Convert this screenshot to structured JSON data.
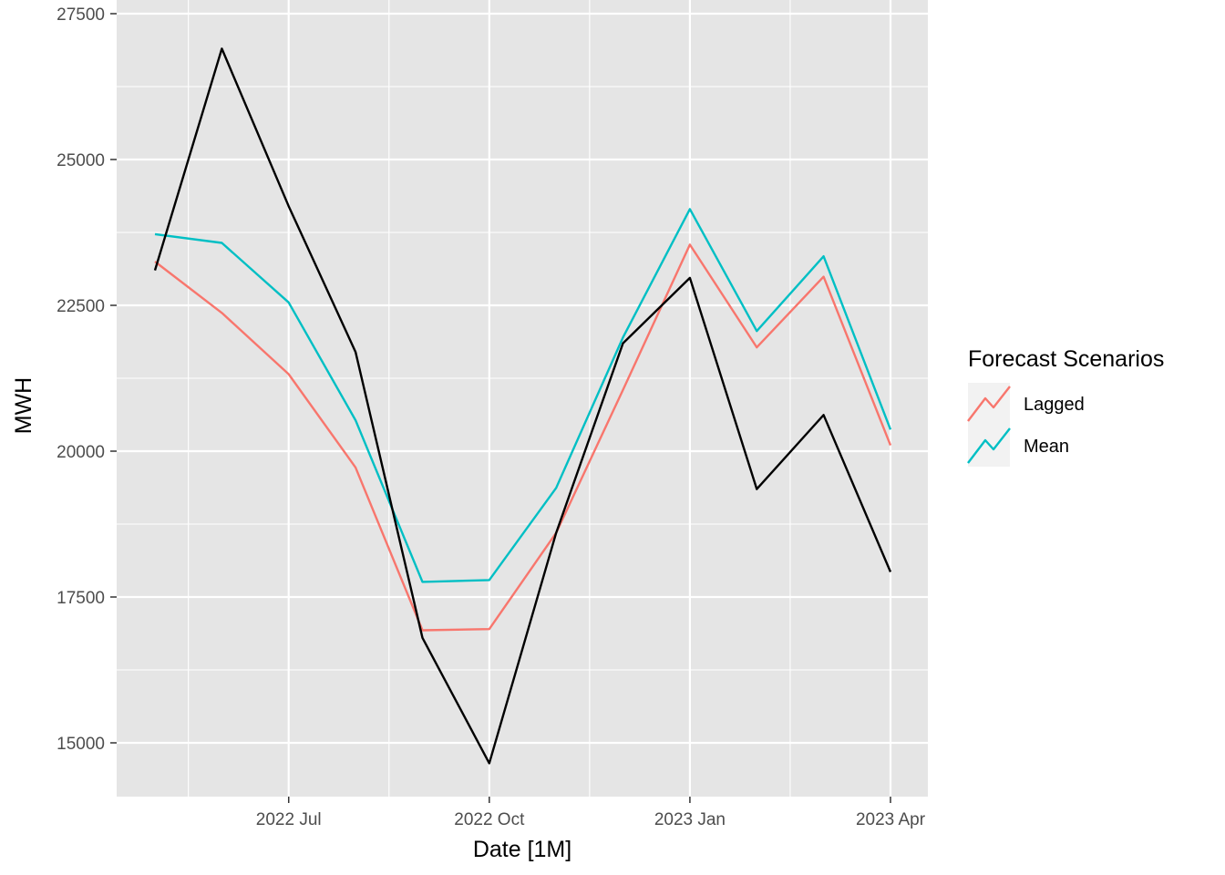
{
  "chart_data": {
    "type": "line",
    "xlabel": "Date [1M]",
    "ylabel": "MWH",
    "x": [
      "2022-05",
      "2022-06",
      "2022-07",
      "2022-08",
      "2022-09",
      "2022-10",
      "2022-11",
      "2022-12",
      "2023-01",
      "2023-02",
      "2023-03",
      "2023-04"
    ],
    "x_tick_labels": [
      "2022 Jul",
      "2022 Oct",
      "2023 Jan",
      "2023 Apr"
    ],
    "x_tick_dates": [
      "2022-07",
      "2022-10",
      "2023-01",
      "2023-04"
    ],
    "ylim": [
      14100,
      27500
    ],
    "y_ticks": [
      15000,
      17500,
      20000,
      22500,
      25000,
      27500
    ],
    "y_tick_labels": [
      "15000",
      "17500",
      "20000",
      "22500",
      "25000",
      "27500"
    ],
    "grid": true,
    "legend": {
      "title": "Forecast Scenarios",
      "position": "right"
    },
    "series": [
      {
        "name": "",
        "color": "#000000",
        "values": [
          23100,
          26900,
          24200,
          21700,
          16800,
          14650,
          18600,
          21850,
          22970,
          19350,
          20620,
          17930
        ]
      },
      {
        "name": "Lagged",
        "color": "#F8766D",
        "values": [
          23250,
          22370,
          21320,
          19720,
          16930,
          16950,
          18600,
          21050,
          23540,
          21780,
          22990,
          20100
        ]
      },
      {
        "name": "Mean",
        "color": "#00BFC4",
        "values": [
          23720,
          23570,
          22550,
          20530,
          17760,
          17790,
          19370,
          21950,
          24150,
          22060,
          23340,
          20370
        ]
      }
    ]
  }
}
